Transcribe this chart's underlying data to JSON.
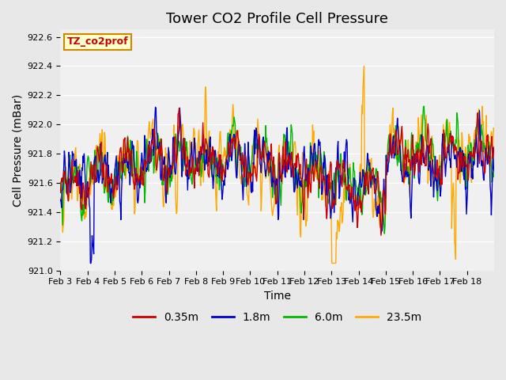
{
  "title": "Tower CO2 Profile Cell Pressure",
  "xlabel": "Time",
  "ylabel": "Cell Pressure (mBar)",
  "ylim": [
    921.0,
    922.65
  ],
  "yticks": [
    921.0,
    921.2,
    921.4,
    921.6,
    921.8,
    922.0,
    922.2,
    922.4,
    922.6
  ],
  "xtick_labels": [
    "Feb 3",
    "Feb 4",
    "Feb 5",
    "Feb 6",
    "Feb 7",
    "Feb 8",
    "Feb 9",
    "Feb 10",
    "Feb 11",
    "Feb 12",
    "Feb 13",
    "Feb 14",
    "Feb 15",
    "Feb 16",
    "Feb 17",
    "Feb 18"
  ],
  "series_names": [
    "0.35m",
    "1.8m",
    "6.0m",
    "23.5m"
  ],
  "series_colors": [
    "#cc0000",
    "#0000cc",
    "#00bb00",
    "#ffaa00"
  ],
  "legend_label": "TZ_co2prof",
  "legend_box_facecolor": "#ffffcc",
  "legend_box_edgecolor": "#cc8800",
  "bg_color": "#e8e8e8",
  "plot_bg_color": "#f0f0f0",
  "title_fontsize": 13,
  "axis_label_fontsize": 10,
  "tick_fontsize": 8
}
